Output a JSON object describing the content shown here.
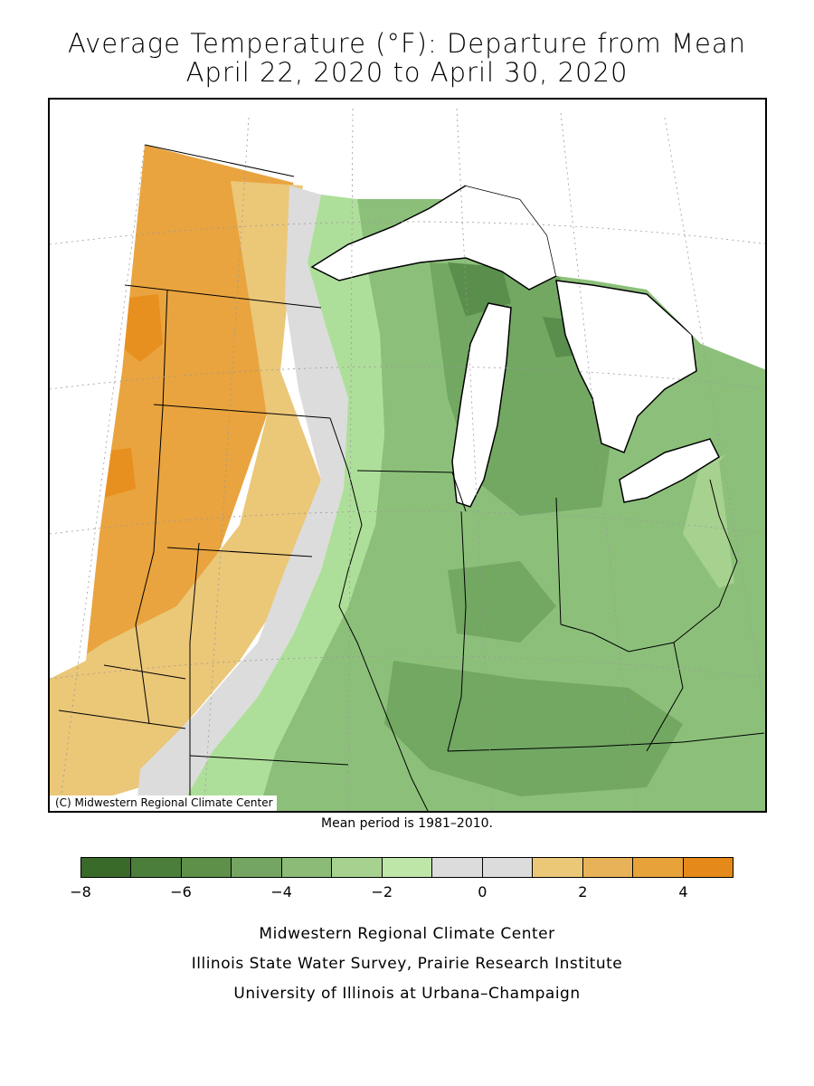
{
  "title": {
    "line1": "Average Temperature (°F): Departure from Mean",
    "line2": "April 22, 2020 to April 30, 2020"
  },
  "map": {
    "copyright": "(C) Midwestern Regional Climate Center",
    "region_colors": {
      "strong_warm": "#e8901f",
      "warm": "#e9a43f",
      "mild_warm": "#ebc778",
      "neutral": "#dcdcdc",
      "mild_cool": "#aedf9a",
      "cool": "#8cc07a",
      "cooler": "#72a862",
      "coldest": "#5a8e4c",
      "lake": "#ffffff"
    }
  },
  "mean_note": "Mean period is 1981–2010.",
  "legend": {
    "colors": [
      "#3a6a2a",
      "#4c7e3b",
      "#5e904a",
      "#74a562",
      "#8cbb78",
      "#a6d18f",
      "#bfe6a9",
      "#dcdcdc",
      "#dcdcdc",
      "#ebc878",
      "#e8b358",
      "#e7a23a",
      "#e5891a"
    ],
    "tick_labels": [
      "−8",
      "−6",
      "−4",
      "−2",
      "0",
      "2",
      "4"
    ],
    "tick_values": [
      -8,
      -6,
      -4,
      -2,
      0,
      2,
      4
    ]
  },
  "footer": {
    "line1": "Midwestern Regional Climate Center",
    "line2": "Illinois State Water Survey, Prairie Research Institute",
    "line3": "University of Illinois at Urbana–Champaign"
  }
}
